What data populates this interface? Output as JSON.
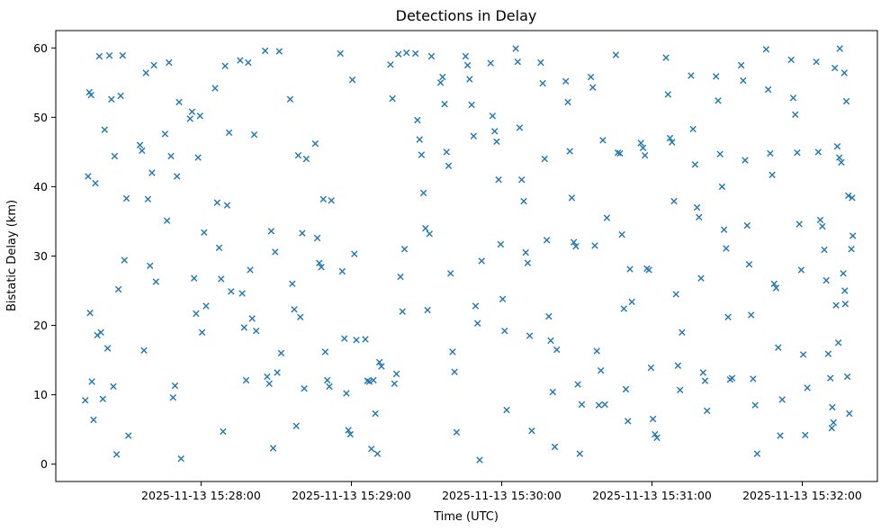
{
  "chart_data": {
    "type": "scatter",
    "title": "Detections in Delay",
    "xlabel": "Time (UTC)",
    "ylabel": "Bistatic Delay (km)",
    "marker": "x",
    "marker_color": "#1f77b4",
    "x_unit": "seconds relative to 2025-11-13 15:28:00",
    "xlim": [
      -58,
      270
    ],
    "ylim": [
      -2.5,
      62.5
    ],
    "x_ticks": [
      0,
      60,
      120,
      180,
      240
    ],
    "x_tick_labels": [
      "2025-11-13 15:28:00",
      "2025-11-13 15:29:00",
      "2025-11-13 15:30:00",
      "2025-11-13 15:31:00",
      "2025-11-13 15:32:00"
    ],
    "y_ticks": [
      0,
      10,
      20,
      30,
      40,
      50,
      60
    ],
    "grid": false,
    "legend": null,
    "points": [
      [
        -46.2,
        9.2
      ],
      [
        -45.1,
        41.5
      ],
      [
        -44.3,
        21.8
      ],
      [
        -43.6,
        11.9
      ],
      [
        -42.9,
        6.4
      ],
      [
        -42.2,
        40.5
      ],
      [
        -41.4,
        18.6
      ],
      [
        -40.6,
        58.8
      ],
      [
        -44.6,
        53.6
      ],
      [
        -43.9,
        53.2
      ],
      [
        -40.0,
        19.0
      ],
      [
        -39.2,
        9.4
      ],
      [
        -38.5,
        48.2
      ],
      [
        -37.3,
        16.7
      ],
      [
        -36.6,
        58.9
      ],
      [
        -35.8,
        52.6
      ],
      [
        -35.0,
        11.2
      ],
      [
        -34.5,
        44.4
      ],
      [
        -33.7,
        1.4
      ],
      [
        -33.0,
        25.2
      ],
      [
        -32.1,
        53.1
      ],
      [
        -31.3,
        58.9
      ],
      [
        -30.6,
        29.4
      ],
      [
        -29.8,
        38.3
      ],
      [
        -29.0,
        4.1
      ],
      [
        -24.4,
        46.0
      ],
      [
        -23.6,
        45.2
      ],
      [
        -22.8,
        16.4
      ],
      [
        -22.0,
        56.4
      ],
      [
        -21.2,
        38.2
      ],
      [
        -20.4,
        28.6
      ],
      [
        -19.6,
        42.0
      ],
      [
        -18.8,
        57.5
      ],
      [
        -18.0,
        26.3
      ],
      [
        -14.4,
        47.6
      ],
      [
        -13.6,
        35.1
      ],
      [
        -12.8,
        57.9
      ],
      [
        -12.0,
        44.4
      ],
      [
        -11.2,
        9.6
      ],
      [
        -10.4,
        11.3
      ],
      [
        -9.6,
        41.5
      ],
      [
        -8.8,
        52.2
      ],
      [
        -8.0,
        0.8
      ],
      [
        -4.4,
        49.8
      ],
      [
        -3.6,
        50.8
      ],
      [
        -2.8,
        26.8
      ],
      [
        -2.0,
        21.7
      ],
      [
        -1.2,
        44.2
      ],
      [
        -0.4,
        50.2
      ],
      [
        0.4,
        19.0
      ],
      [
        1.2,
        33.4
      ],
      [
        2.0,
        22.8
      ],
      [
        5.6,
        54.2
      ],
      [
        6.4,
        37.7
      ],
      [
        7.2,
        31.2
      ],
      [
        8.0,
        26.7
      ],
      [
        8.8,
        4.7
      ],
      [
        9.6,
        57.4
      ],
      [
        10.4,
        37.3
      ],
      [
        11.2,
        47.8
      ],
      [
        12.0,
        24.9
      ],
      [
        15.6,
        58.2
      ],
      [
        16.4,
        24.6
      ],
      [
        17.2,
        19.7
      ],
      [
        18.0,
        12.1
      ],
      [
        18.8,
        57.9
      ],
      [
        19.6,
        28.0
      ],
      [
        20.4,
        21.0
      ],
      [
        21.2,
        47.5
      ],
      [
        22.0,
        19.2
      ],
      [
        25.6,
        59.6
      ],
      [
        26.4,
        12.6
      ],
      [
        27.2,
        11.6
      ],
      [
        28.0,
        33.6
      ],
      [
        28.8,
        2.3
      ],
      [
        29.6,
        30.6
      ],
      [
        30.4,
        13.2
      ],
      [
        31.2,
        59.5
      ],
      [
        32.0,
        16.0
      ],
      [
        35.6,
        52.6
      ],
      [
        36.4,
        26.0
      ],
      [
        37.2,
        22.3
      ],
      [
        38.0,
        5.5
      ],
      [
        38.8,
        44.5
      ],
      [
        39.6,
        21.2
      ],
      [
        40.4,
        33.3
      ],
      [
        41.2,
        10.9
      ],
      [
        42.0,
        44.0
      ],
      [
        45.6,
        46.2
      ],
      [
        46.4,
        32.6
      ],
      [
        47.2,
        29.0
      ],
      [
        48.0,
        28.4
      ],
      [
        48.8,
        38.2
      ],
      [
        49.6,
        16.2
      ],
      [
        50.4,
        12.1
      ],
      [
        51.2,
        11.2
      ],
      [
        52.0,
        38.0
      ],
      [
        55.6,
        59.2
      ],
      [
        56.4,
        27.8
      ],
      [
        57.2,
        18.1
      ],
      [
        58.0,
        10.2
      ],
      [
        58.8,
        4.9
      ],
      [
        59.6,
        4.3
      ],
      [
        60.4,
        55.4
      ],
      [
        61.2,
        30.3
      ],
      [
        62.0,
        17.9
      ],
      [
        65.6,
        18.0
      ],
      [
        66.4,
        12.0
      ],
      [
        67.2,
        11.9
      ],
      [
        68.0,
        2.2
      ],
      [
        68.8,
        12.1
      ],
      [
        69.6,
        7.3
      ],
      [
        70.4,
        1.5
      ],
      [
        71.2,
        14.7
      ],
      [
        72.0,
        14.1
      ],
      [
        75.6,
        57.6
      ],
      [
        76.4,
        52.7
      ],
      [
        77.2,
        11.6
      ],
      [
        78.0,
        13.0
      ],
      [
        78.8,
        59.1
      ],
      [
        79.6,
        27.0
      ],
      [
        80.4,
        22.0
      ],
      [
        81.2,
        31.0
      ],
      [
        82.0,
        59.3
      ],
      [
        85.6,
        59.2
      ],
      [
        86.4,
        49.6
      ],
      [
        87.2,
        46.8
      ],
      [
        88.0,
        44.6
      ],
      [
        88.8,
        39.1
      ],
      [
        89.6,
        34.0
      ],
      [
        90.4,
        22.2
      ],
      [
        91.2,
        33.2
      ],
      [
        92.0,
        58.8
      ],
      [
        95.6,
        55.0
      ],
      [
        96.4,
        55.8
      ],
      [
        97.2,
        51.9
      ],
      [
        98.0,
        45.0
      ],
      [
        98.8,
        43.0
      ],
      [
        99.6,
        27.5
      ],
      [
        100.4,
        16.2
      ],
      [
        101.2,
        13.3
      ],
      [
        102.0,
        4.6
      ],
      [
        105.6,
        58.8
      ],
      [
        106.4,
        57.5
      ],
      [
        107.2,
        55.5
      ],
      [
        108.0,
        51.8
      ],
      [
        108.8,
        47.3
      ],
      [
        109.6,
        22.8
      ],
      [
        110.4,
        20.3
      ],
      [
        111.2,
        0.6
      ],
      [
        112.0,
        29.3
      ],
      [
        115.6,
        57.8
      ],
      [
        116.4,
        50.2
      ],
      [
        117.2,
        48.0
      ],
      [
        118.0,
        46.5
      ],
      [
        118.8,
        41.0
      ],
      [
        119.6,
        31.7
      ],
      [
        120.4,
        23.8
      ],
      [
        121.2,
        19.2
      ],
      [
        122.0,
        7.8
      ],
      [
        125.6,
        59.9
      ],
      [
        126.4,
        58.0
      ],
      [
        127.2,
        48.5
      ],
      [
        128.0,
        41.0
      ],
      [
        128.8,
        37.9
      ],
      [
        129.6,
        30.5
      ],
      [
        130.4,
        29.0
      ],
      [
        131.2,
        18.5
      ],
      [
        132.0,
        4.8
      ],
      [
        135.6,
        57.9
      ],
      [
        136.4,
        54.9
      ],
      [
        137.2,
        44.0
      ],
      [
        138.0,
        32.3
      ],
      [
        138.8,
        21.3
      ],
      [
        139.6,
        17.8
      ],
      [
        140.4,
        10.4
      ],
      [
        141.2,
        2.5
      ],
      [
        142.0,
        16.5
      ],
      [
        145.6,
        55.2
      ],
      [
        146.4,
        52.2
      ],
      [
        147.2,
        45.1
      ],
      [
        148.0,
        38.4
      ],
      [
        148.8,
        32.0
      ],
      [
        149.6,
        31.4
      ],
      [
        150.4,
        11.5
      ],
      [
        151.2,
        1.5
      ],
      [
        152.0,
        8.6
      ],
      [
        155.6,
        55.8
      ],
      [
        156.4,
        54.3
      ],
      [
        157.2,
        31.5
      ],
      [
        158.0,
        16.3
      ],
      [
        158.8,
        8.5
      ],
      [
        159.6,
        13.5
      ],
      [
        160.4,
        46.7
      ],
      [
        161.2,
        8.6
      ],
      [
        162.0,
        35.5
      ],
      [
        165.6,
        59.0
      ],
      [
        166.4,
        44.9
      ],
      [
        167.2,
        44.8
      ],
      [
        168.0,
        33.1
      ],
      [
        168.8,
        22.4
      ],
      [
        169.6,
        10.8
      ],
      [
        170.4,
        6.2
      ],
      [
        171.2,
        28.1
      ],
      [
        172.0,
        23.4
      ],
      [
        175.6,
        46.3
      ],
      [
        176.4,
        45.6
      ],
      [
        177.2,
        44.5
      ],
      [
        178.0,
        28.2
      ],
      [
        178.8,
        28.0
      ],
      [
        179.6,
        13.9
      ],
      [
        180.4,
        6.5
      ],
      [
        181.2,
        4.3
      ],
      [
        182.0,
        3.8
      ],
      [
        185.6,
        58.6
      ],
      [
        186.4,
        53.3
      ],
      [
        187.2,
        47.0
      ],
      [
        188.0,
        46.4
      ],
      [
        188.8,
        37.9
      ],
      [
        189.6,
        24.5
      ],
      [
        190.4,
        14.2
      ],
      [
        191.2,
        10.7
      ],
      [
        192.0,
        19.0
      ],
      [
        195.6,
        56.0
      ],
      [
        196.4,
        48.3
      ],
      [
        197.2,
        43.2
      ],
      [
        198.0,
        37.0
      ],
      [
        198.8,
        35.6
      ],
      [
        199.6,
        26.8
      ],
      [
        200.4,
        13.2
      ],
      [
        201.2,
        12.0
      ],
      [
        202.0,
        7.7
      ],
      [
        205.6,
        55.9
      ],
      [
        206.4,
        52.4
      ],
      [
        207.2,
        44.7
      ],
      [
        208.0,
        40.0
      ],
      [
        208.8,
        33.8
      ],
      [
        209.6,
        31.1
      ],
      [
        210.4,
        21.2
      ],
      [
        211.2,
        12.2
      ],
      [
        212.0,
        12.4
      ],
      [
        215.6,
        57.5
      ],
      [
        216.4,
        55.3
      ],
      [
        217.2,
        43.8
      ],
      [
        218.0,
        34.4
      ],
      [
        218.8,
        28.8
      ],
      [
        219.6,
        21.5
      ],
      [
        220.4,
        12.3
      ],
      [
        221.2,
        8.5
      ],
      [
        222.0,
        1.5
      ],
      [
        225.6,
        59.8
      ],
      [
        226.4,
        54.0
      ],
      [
        227.2,
        44.8
      ],
      [
        228.0,
        41.7
      ],
      [
        228.8,
        26.0
      ],
      [
        229.6,
        25.4
      ],
      [
        230.4,
        16.8
      ],
      [
        231.2,
        4.1
      ],
      [
        232.0,
        9.3
      ],
      [
        235.6,
        58.3
      ],
      [
        236.4,
        52.8
      ],
      [
        237.2,
        50.4
      ],
      [
        238.0,
        44.9
      ],
      [
        238.8,
        34.6
      ],
      [
        239.6,
        28.0
      ],
      [
        240.4,
        15.8
      ],
      [
        241.2,
        4.2
      ],
      [
        242.0,
        11.0
      ],
      [
        245.6,
        58.0
      ],
      [
        246.4,
        45.0
      ],
      [
        247.2,
        35.2
      ],
      [
        248.0,
        34.3
      ],
      [
        248.8,
        30.9
      ],
      [
        249.6,
        26.5
      ],
      [
        250.4,
        15.9
      ],
      [
        251.2,
        12.4
      ],
      [
        252.0,
        8.2
      ],
      [
        253.0,
        57.1
      ],
      [
        254.0,
        45.8
      ],
      [
        254.8,
        44.2
      ],
      [
        255.6,
        43.5
      ],
      [
        256.4,
        27.5
      ],
      [
        257.2,
        23.1
      ],
      [
        258.0,
        12.6
      ],
      [
        258.8,
        7.3
      ],
      [
        259.6,
        31.0
      ],
      [
        255.0,
        59.9
      ],
      [
        256.8,
        56.4
      ],
      [
        257.6,
        52.3
      ],
      [
        258.4,
        38.7
      ],
      [
        259.9,
        38.4
      ],
      [
        260.2,
        32.9
      ],
      [
        257.0,
        25.0
      ],
      [
        253.5,
        22.9
      ],
      [
        254.4,
        17.5
      ],
      [
        252.5,
        6.0
      ],
      [
        251.8,
        5.2
      ]
    ]
  }
}
